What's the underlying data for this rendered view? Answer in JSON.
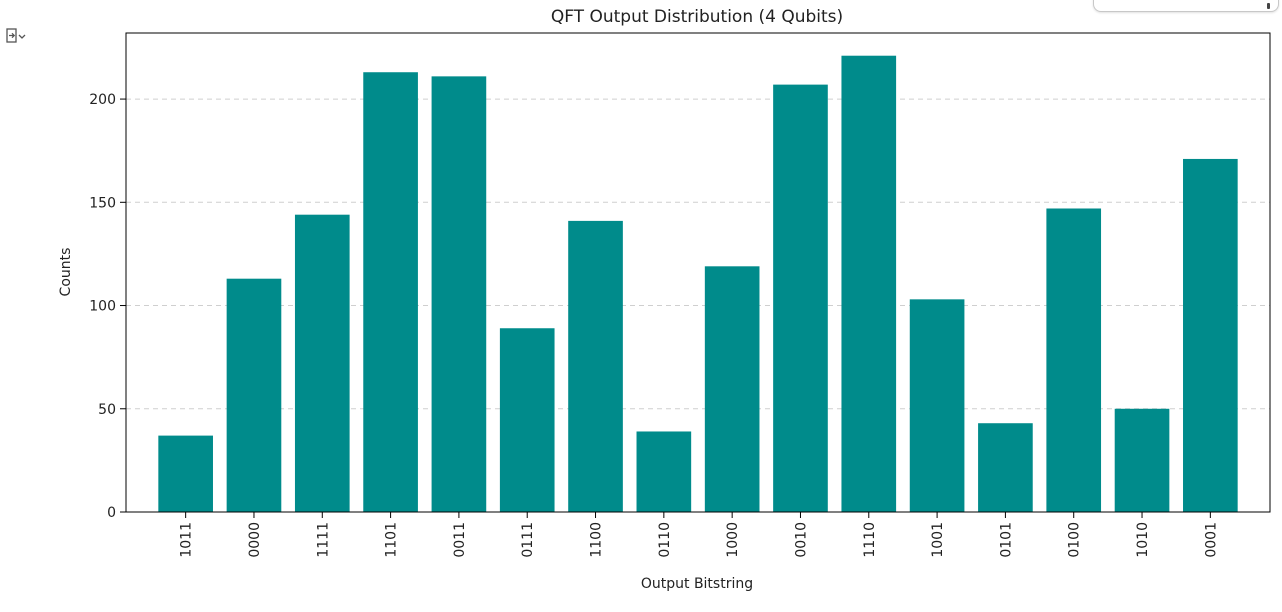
{
  "output_toggle": {
    "icon": "output-expand-icon"
  },
  "corner_widget": {
    "icon": "more-vert-icon"
  },
  "colors": {
    "bar": "#008b8b",
    "grid": "#cfcfcf",
    "axis": "#000000"
  },
  "chart_data": {
    "type": "bar",
    "title": "QFT Output Distribution (4 Qubits)",
    "xlabel": "Output Bitstring",
    "ylabel": "Counts",
    "categories": [
      "1011",
      "0000",
      "1111",
      "1101",
      "0011",
      "0111",
      "1100",
      "0110",
      "1000",
      "0010",
      "1110",
      "1001",
      "0101",
      "0100",
      "1010",
      "0001"
    ],
    "values": [
      37,
      113,
      144,
      213,
      211,
      89,
      141,
      39,
      119,
      207,
      221,
      103,
      43,
      147,
      50,
      171
    ],
    "ylim": [
      0,
      232
    ],
    "yticks": [
      0,
      50,
      100,
      150,
      200
    ],
    "grid": "y-dashed",
    "x_tick_rotation": "vertical"
  }
}
